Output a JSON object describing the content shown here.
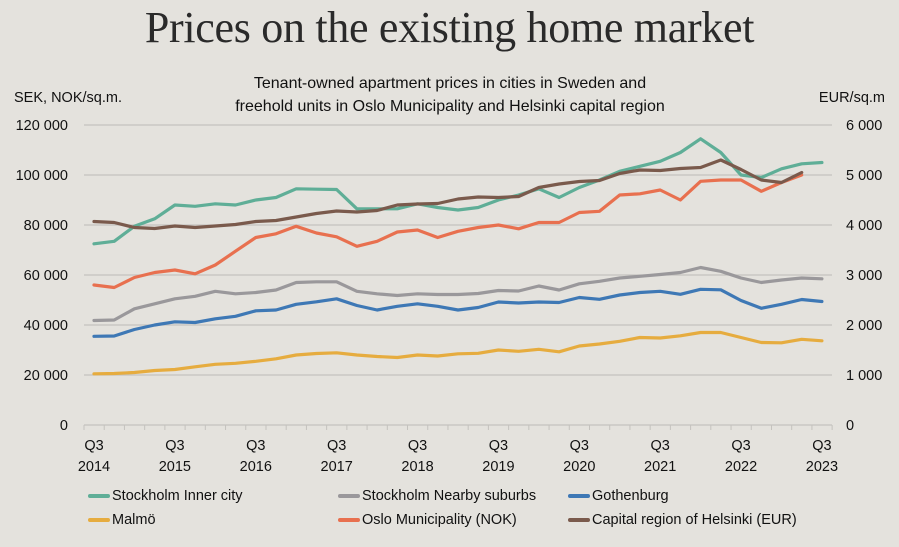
{
  "chart_data": {
    "type": "line",
    "title": "Prices on the existing home market",
    "subtitle_lines": [
      "Tenant-owned apartment prices in cities in Sweden and",
      "freehold units in Oslo Municipality and Helsinki capital region"
    ],
    "ylabel_left": "SEK, NOK/sq.m.",
    "ylabel_right": "EUR/sq.m",
    "ylim_left": [
      0,
      120000
    ],
    "ylim_right": [
      0,
      6000
    ],
    "yticks_left": [
      "0",
      "20 000",
      "40 000",
      "60 000",
      "80 000",
      "100 000",
      "120 000"
    ],
    "yticks_right": [
      "0",
      "1 000",
      "2 000",
      "3 000",
      "4 000",
      "5 000",
      "6 000"
    ],
    "grid": true,
    "legend_position": "bottom",
    "x_count": 37,
    "x_start": "Q3 2014",
    "x_end": "Q3 2023",
    "xtick_labels": [
      {
        "index": 0,
        "q": "Q3",
        "year": "2014"
      },
      {
        "index": 4,
        "q": "Q3",
        "year": "2015"
      },
      {
        "index": 8,
        "q": "Q3",
        "year": "2016"
      },
      {
        "index": 12,
        "q": "Q3",
        "year": "2017"
      },
      {
        "index": 16,
        "q": "Q3",
        "year": "2018"
      },
      {
        "index": 20,
        "q": "Q3",
        "year": "2019"
      },
      {
        "index": 24,
        "q": "Q3",
        "year": "2020"
      },
      {
        "index": 28,
        "q": "Q3",
        "year": "2021"
      },
      {
        "index": 32,
        "q": "Q3",
        "year": "2022"
      },
      {
        "index": 36,
        "q": "Q3",
        "year": "2023"
      }
    ],
    "series": [
      {
        "name": "Stockholm Inner city",
        "color": "#5fae97",
        "axis": "left",
        "values": [
          72500,
          73500,
          79500,
          82500,
          88000,
          87500,
          88500,
          88000,
          90000,
          91000,
          94500,
          94300,
          94200,
          86500,
          86500,
          86500,
          88500,
          87000,
          86000,
          87000,
          90000,
          92000,
          94500,
          91000,
          95000,
          98000,
          101500,
          103500,
          105500,
          109000,
          114500,
          109000,
          100000,
          99000,
          102500,
          104500,
          105000
        ]
      },
      {
        "name": "Stockholm Nearby suburbs",
        "color": "#9a989b",
        "axis": "left",
        "values": [
          41800,
          42000,
          46500,
          48500,
          50500,
          51500,
          53500,
          52500,
          53000,
          54000,
          57000,
          57300,
          57300,
          53500,
          52500,
          51800,
          52500,
          52200,
          52200,
          52600,
          53800,
          53600,
          55600,
          54000,
          56500,
          57500,
          58800,
          59500,
          60200,
          61000,
          63000,
          61500,
          58800,
          57000,
          58000,
          58800,
          58500
        ]
      },
      {
        "name": "Gothenburg",
        "color": "#3e78b5",
        "axis": "left",
        "values": [
          35500,
          35600,
          38200,
          40000,
          41300,
          41000,
          42500,
          43500,
          45700,
          46000,
          48300,
          49300,
          50500,
          47800,
          46000,
          47500,
          48500,
          47500,
          46000,
          47000,
          49200,
          48800,
          49200,
          49000,
          51000,
          50300,
          52000,
          53000,
          53500,
          52300,
          54300,
          54100,
          49800,
          46700,
          48300,
          50200,
          49400
        ]
      },
      {
        "name": "Malmö",
        "color": "#e6ac3f",
        "axis": "left",
        "values": [
          20500,
          20600,
          21000,
          21800,
          22200,
          23300,
          24300,
          24700,
          25500,
          26500,
          28000,
          28600,
          28900,
          28000,
          27400,
          27000,
          28000,
          27600,
          28500,
          28700,
          30000,
          29500,
          30300,
          29300,
          31600,
          32400,
          33500,
          35000,
          34800,
          35700,
          37000,
          37000,
          35000,
          33000,
          32900,
          34300,
          33700
        ]
      },
      {
        "name": "Oslo Municipality (NOK)",
        "color": "#e8704f",
        "axis": "left",
        "values": [
          56000,
          55000,
          59000,
          61000,
          62000,
          60500,
          64000,
          69500,
          75000,
          76500,
          79500,
          76800,
          75300,
          71500,
          73500,
          77200,
          78000,
          75000,
          77500,
          79000,
          80000,
          78500,
          81000,
          81000,
          85000,
          85500,
          92000,
          92500,
          94000,
          90000,
          97500,
          98000,
          98000,
          93500,
          97000,
          100000
        ]
      },
      {
        "name": "Capital region of Helsinki (EUR)",
        "color": "#7a5a4c",
        "axis": "right",
        "values": [
          4070,
          4050,
          3950,
          3930,
          3980,
          3950,
          3980,
          4010,
          4070,
          4090,
          4160,
          4230,
          4280,
          4260,
          4290,
          4400,
          4420,
          4430,
          4520,
          4560,
          4550,
          4570,
          4750,
          4820,
          4870,
          4890,
          5030,
          5100,
          5090,
          5130,
          5150,
          5300,
          5110,
          4900,
          4850,
          5050
        ]
      }
    ]
  }
}
